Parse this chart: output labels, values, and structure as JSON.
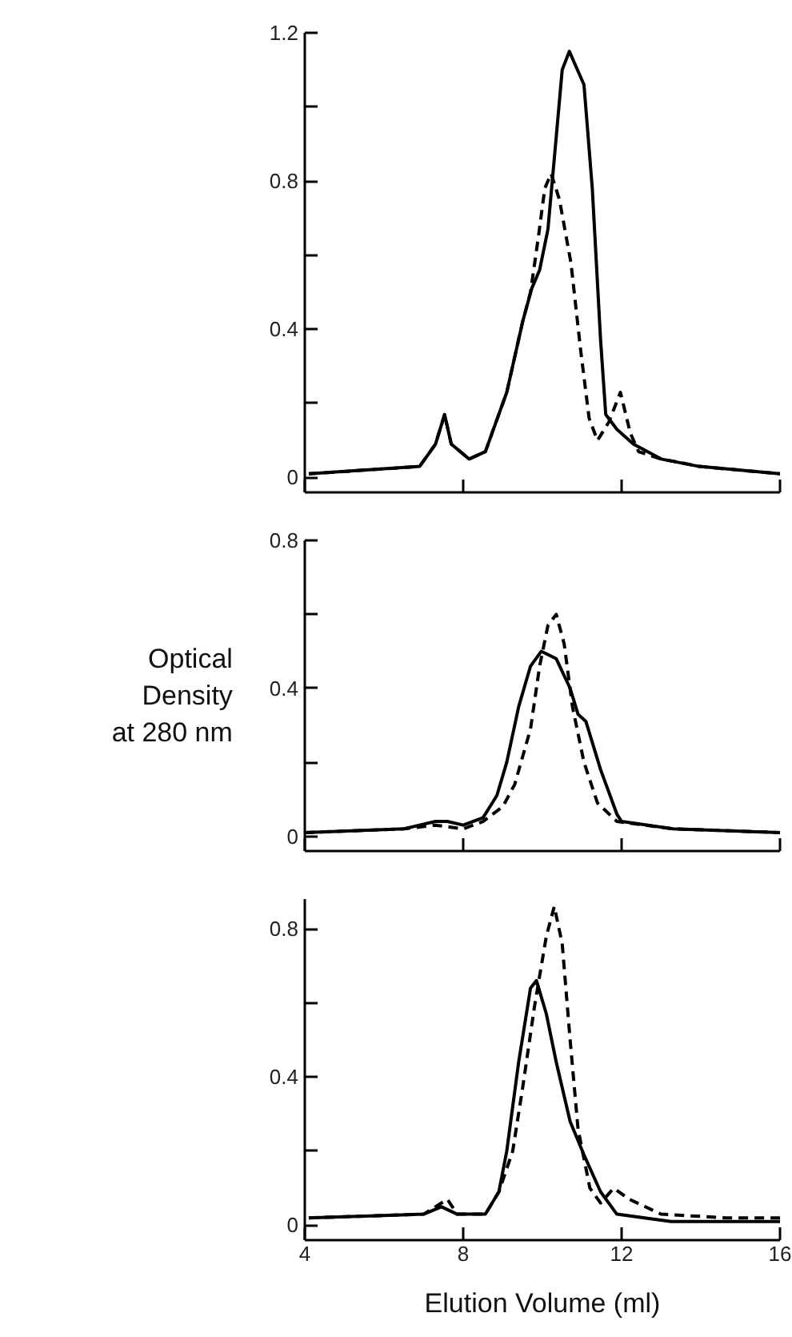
{
  "chart_data": [
    {
      "type": "line",
      "xlim": [
        4,
        16
      ],
      "xticks": [
        4,
        8,
        12,
        16
      ],
      "ylim": [
        -0.04,
        1.2
      ],
      "yticks": [
        0,
        {
          "value": 0.2,
          "label": null
        },
        0.4,
        {
          "value": 0.6,
          "label": null
        },
        0.8,
        {
          "value": 1.0,
          "label": null
        },
        1.2
      ],
      "tick_labels": "y",
      "grid": false,
      "marker": "none",
      "series": [
        {
          "color": "#000000",
          "line_style": "solid",
          "x": [
            4.1,
            6.9,
            7.3,
            7.53,
            7.7,
            8.15,
            8.56,
            9.1,
            9.5,
            9.73,
            9.93,
            10.14,
            10.35,
            10.5,
            10.68,
            11.05,
            11.26,
            11.47,
            11.6,
            11.88,
            12.3,
            13.0,
            13.96,
            16.0
          ],
          "values": [
            0.01,
            0.03,
            0.09,
            0.17,
            0.09,
            0.05,
            0.07,
            0.23,
            0.42,
            0.51,
            0.56,
            0.67,
            0.92,
            1.1,
            1.15,
            1.06,
            0.78,
            0.37,
            0.17,
            0.13,
            0.09,
            0.05,
            0.03,
            0.01
          ]
        },
        {
          "color": "#000000",
          "line_style": "dashed",
          "x": [
            4.1,
            6.9,
            7.3,
            7.53,
            7.7,
            8.15,
            8.56,
            9.1,
            9.5,
            9.7,
            9.9,
            10.06,
            10.22,
            10.43,
            10.72,
            10.97,
            11.18,
            11.39,
            11.68,
            11.97,
            12.22,
            12.43,
            13.0,
            13.5,
            13.96,
            16.0
          ],
          "values": [
            0.01,
            0.03,
            0.09,
            0.17,
            0.09,
            0.05,
            0.07,
            0.23,
            0.42,
            0.5,
            0.65,
            0.78,
            0.82,
            0.75,
            0.58,
            0.34,
            0.16,
            0.1,
            0.15,
            0.23,
            0.12,
            0.07,
            0.05,
            0.04,
            0.03,
            0.01
          ]
        }
      ]
    },
    {
      "type": "line",
      "ylabel": "Optical\nDensity\nat 280 nm",
      "xlim": [
        4,
        16
      ],
      "xticks": [
        4,
        8,
        12,
        16
      ],
      "ylim": [
        -0.04,
        0.8
      ],
      "yticks": [
        0,
        {
          "value": 0.2,
          "label": null
        },
        0.4,
        {
          "value": 0.6,
          "label": null
        },
        0.8
      ],
      "tick_labels": "y",
      "grid": false,
      "marker": "none",
      "series": [
        {
          "color": "#000000",
          "line_style": "solid",
          "x": [
            4.0,
            6.5,
            7.3,
            7.6,
            8.0,
            8.5,
            8.85,
            9.1,
            9.4,
            9.7,
            9.97,
            10.35,
            10.7,
            10.9,
            11.1,
            11.47,
            11.88,
            12.0,
            13.3,
            16.0
          ],
          "values": [
            0.01,
            0.02,
            0.04,
            0.04,
            0.03,
            0.05,
            0.11,
            0.2,
            0.35,
            0.46,
            0.5,
            0.48,
            0.4,
            0.33,
            0.31,
            0.18,
            0.06,
            0.04,
            0.02,
            0.01
          ]
        },
        {
          "color": "#000000",
          "line_style": "dashed",
          "x": [
            4.0,
            6.5,
            7.3,
            8.0,
            8.5,
            9.0,
            9.3,
            9.7,
            9.93,
            10.14,
            10.35,
            10.55,
            10.76,
            11.05,
            11.39,
            11.88,
            13.3,
            16.0
          ],
          "values": [
            0.01,
            0.02,
            0.03,
            0.02,
            0.04,
            0.08,
            0.14,
            0.29,
            0.46,
            0.57,
            0.6,
            0.52,
            0.35,
            0.2,
            0.09,
            0.04,
            0.02,
            0.01
          ]
        }
      ]
    },
    {
      "type": "line",
      "xlabel": "Elution Volume (ml)",
      "xlim": [
        4,
        16
      ],
      "xticks": [
        4,
        8,
        12,
        16
      ],
      "ylim": [
        -0.04,
        0.88
      ],
      "yticks": [
        0,
        {
          "value": 0.2,
          "label": null
        },
        0.4,
        {
          "value": 0.6,
          "label": null
        },
        0.8
      ],
      "grid": false,
      "marker": "none",
      "series": [
        {
          "color": "#000000",
          "line_style": "solid",
          "x": [
            4.1,
            7.0,
            7.45,
            7.85,
            8.56,
            8.9,
            9.1,
            9.4,
            9.7,
            9.85,
            10.1,
            10.35,
            10.7,
            11.05,
            11.47,
            11.88,
            13.25,
            16.0
          ],
          "values": [
            0.02,
            0.03,
            0.05,
            0.03,
            0.03,
            0.09,
            0.2,
            0.44,
            0.64,
            0.66,
            0.57,
            0.44,
            0.28,
            0.19,
            0.09,
            0.03,
            0.01,
            0.01
          ]
        },
        {
          "color": "#000000",
          "line_style": "dashed",
          "x": [
            4.1,
            7.0,
            7.6,
            7.85,
            8.56,
            8.9,
            9.25,
            9.5,
            9.8,
            10.1,
            10.3,
            10.5,
            10.7,
            10.9,
            11.2,
            11.47,
            11.8,
            12.2,
            13.0,
            14.65,
            16.0
          ],
          "values": [
            0.02,
            0.03,
            0.07,
            0.03,
            0.03,
            0.09,
            0.2,
            0.37,
            0.59,
            0.78,
            0.86,
            0.76,
            0.5,
            0.26,
            0.1,
            0.06,
            0.1,
            0.07,
            0.03,
            0.02,
            0.02
          ]
        }
      ]
    }
  ]
}
